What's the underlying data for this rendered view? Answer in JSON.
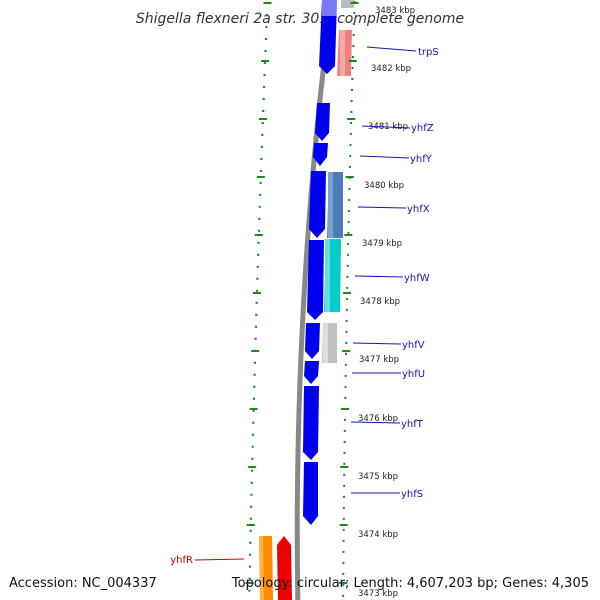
{
  "title": "Shigella flexneri 2a str. 301, complete genome",
  "footer": {
    "accession": "Accession: NC_004337",
    "summary": "Topology: circular; Length: 4,607,203 bp; Genes: 4,305"
  },
  "colors": {
    "forward_strand": "#0000ee",
    "reverse_label": "#cc0000",
    "tick": "#1a8a1a",
    "backbone": "#888888"
  },
  "scale_labels": [
    "3483 kbp",
    "3482 kbp",
    "3481 kbp",
    "3480 kbp",
    "3479 kbp",
    "3478 kbp",
    "3477 kbp",
    "3476 kbp",
    "3475 kbp",
    "3474 kbp",
    "3473 kbp"
  ],
  "gene_labels": [
    {
      "text": "trpS",
      "color": "#1515b0"
    },
    {
      "text": "yhfZ",
      "color": "#1515b0"
    },
    {
      "text": "yhfY",
      "color": "#1515b0"
    },
    {
      "text": "yhfX",
      "color": "#1515b0"
    },
    {
      "text": "yhfW",
      "color": "#1515b0"
    },
    {
      "text": "yhfV",
      "color": "#1515b0"
    },
    {
      "text": "yhfU",
      "color": "#1515b0"
    },
    {
      "text": "yhfT",
      "color": "#1515b0"
    },
    {
      "text": "yhfS",
      "color": "#1515b0"
    },
    {
      "text": "yhfR",
      "color": "#cc0000"
    }
  ]
}
